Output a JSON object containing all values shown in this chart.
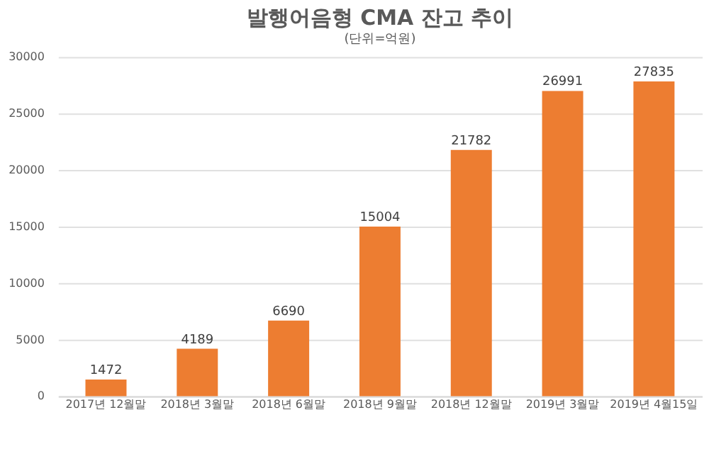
{
  "chart_data": {
    "type": "bar",
    "title": "발행어음형 CMA 잔고 추이",
    "subtitle": "(단위=억원)",
    "categories": [
      "2017년 12월말",
      "2018년 3월말",
      "2018년 6월말",
      "2018년 9월말",
      "2018년 12월말",
      "2019년 3월말",
      "2019년 4월15일"
    ],
    "values": [
      1472,
      4189,
      6690,
      15004,
      21782,
      26991,
      27835
    ],
    "color": "#ed7d31",
    "ylim": [
      0,
      30000
    ],
    "yticks": [
      0,
      5000,
      10000,
      15000,
      20000,
      25000,
      30000
    ],
    "grid": "y",
    "data_labels": true
  }
}
